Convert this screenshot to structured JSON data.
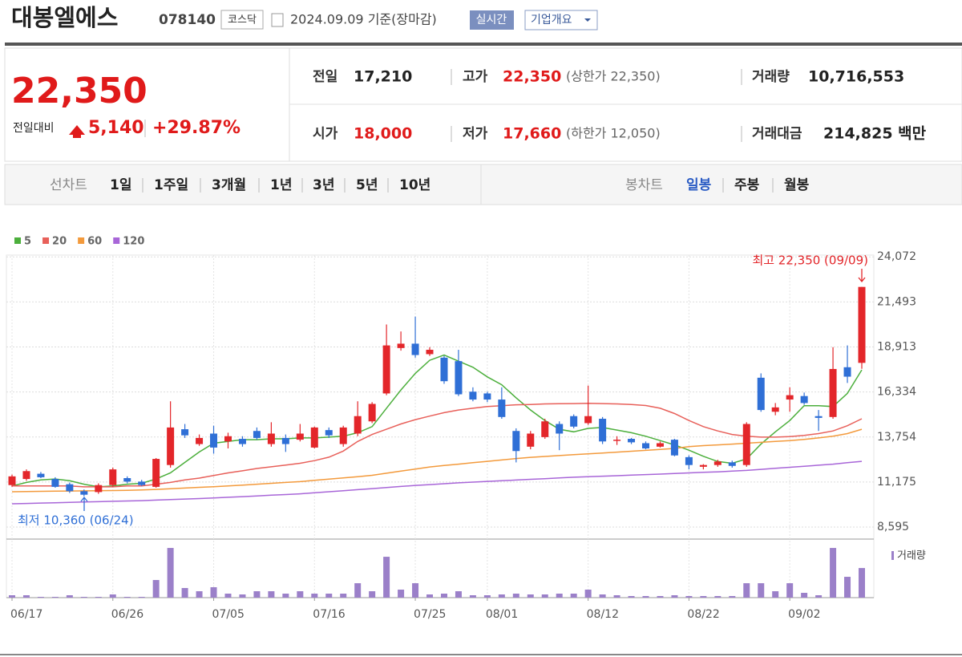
{
  "header": {
    "title": "대봉엘에스",
    "code": "078140",
    "market": "코스닥",
    "date": "2024.09.09 기준(장마감)",
    "buttons": [
      "실시간",
      "기업개요"
    ]
  },
  "quote": {
    "price": "22,350",
    "change_label": "전일대비",
    "change": "5,140",
    "rate": "+29.87%"
  },
  "stats": [
    {
      "label": "전일",
      "value": "17,210"
    },
    {
      "label": "고가",
      "value": "22,350",
      "note": "(상한가 22,350)"
    },
    {
      "label": "거래량",
      "value": "10,716,553"
    },
    {
      "label": "시가",
      "value": "18,000"
    },
    {
      "label": "저가",
      "value": "17,660",
      "note": "(하한가 12,050)"
    },
    {
      "label": "거래대금",
      "value": "214,825 백만"
    }
  ],
  "tabs": {
    "line": {
      "label": "선차트",
      "items": [
        "1일",
        "1주일",
        "3개월",
        "1년",
        "3년",
        "5년",
        "10년"
      ]
    },
    "candle": {
      "label": "봉차트",
      "items": [
        "일봉",
        "주봉",
        "월봉"
      ]
    }
  },
  "chart_data": {
    "type": "candlestick",
    "categories": [
      "06/17",
      null,
      null,
      null,
      null,
      null,
      null,
      "06/26",
      null,
      null,
      null,
      null,
      null,
      null,
      "07/05",
      null,
      null,
      null,
      null,
      null,
      null,
      "07/16",
      null,
      null,
      null,
      null,
      null,
      null,
      "07/25",
      null,
      null,
      null,
      null,
      "08/01",
      null,
      null,
      null,
      null,
      null,
      null,
      "08/12",
      null,
      null,
      null,
      null,
      null,
      null,
      "08/22",
      null,
      null,
      null,
      null,
      null,
      null,
      "09/02",
      null,
      null,
      null,
      null,
      null
    ],
    "open": [
      11000,
      11350,
      11650,
      11350,
      11050,
      10650,
      10600,
      11000,
      11400,
      11200,
      10900,
      12150,
      14200,
      13350,
      13950,
      13500,
      13650,
      14100,
      13350,
      13700,
      13600,
      13150,
      14150,
      13350,
      13950,
      14650,
      16250,
      18850,
      19100,
      18500,
      18300,
      18100,
      16350,
      16250,
      15900,
      14100,
      13200,
      13750,
      14500,
      14950,
      14550,
      14800,
      13550,
      13650,
      13400,
      13200,
      13600,
      12600,
      12050,
      12150,
      12300,
      12150,
      17150,
      15200,
      15900,
      16100,
      14950,
      14900,
      17750,
      18000
    ],
    "high": [
      11600,
      11900,
      11750,
      11450,
      11150,
      10750,
      11100,
      12000,
      11500,
      11300,
      12550,
      15800,
      14500,
      13900,
      14400,
      14000,
      13800,
      14300,
      14600,
      13900,
      14500,
      14350,
      14300,
      14400,
      15800,
      15750,
      20200,
      19800,
      20650,
      18900,
      18400,
      18750,
      16600,
      16350,
      16600,
      14250,
      14100,
      14800,
      14650,
      15050,
      16700,
      14900,
      13800,
      13700,
      13500,
      13500,
      13650,
      12700,
      12200,
      12450,
      12400,
      14600,
      17400,
      15700,
      16600,
      16300,
      15300,
      18900,
      19000,
      22350
    ],
    "low": [
      10900,
      11250,
      11400,
      10850,
      10550,
      10360,
      10500,
      10900,
      11100,
      10950,
      10850,
      12000,
      13700,
      13250,
      12800,
      13100,
      13200,
      13600,
      13200,
      12900,
      13500,
      13100,
      13700,
      13200,
      13800,
      14550,
      16150,
      18700,
      18300,
      18400,
      16800,
      16100,
      15800,
      15750,
      14800,
      12300,
      13050,
      13650,
      13000,
      14250,
      14450,
      13350,
      13300,
      13350,
      13050,
      13150,
      12650,
      11900,
      11900,
      12050,
      12000,
      12050,
      15200,
      15000,
      15200,
      15600,
      14100,
      14800,
      16850,
      17660
    ],
    "close": [
      11500,
      11800,
      11450,
      10900,
      10650,
      10450,
      11000,
      11900,
      11200,
      11000,
      12500,
      14300,
      13850,
      13700,
      13150,
      13800,
      13350,
      13700,
      13950,
      13350,
      13950,
      14300,
      13850,
      14300,
      14950,
      15650,
      19000,
      19100,
      18450,
      18750,
      16950,
      16200,
      15900,
      15900,
      14900,
      12950,
      13950,
      14650,
      13950,
      14350,
      14950,
      13500,
      13600,
      13450,
      13100,
      13400,
      12700,
      12150,
      12150,
      12350,
      12100,
      14500,
      15300,
      15450,
      16150,
      15700,
      14850,
      17650,
      17210,
      22350
    ],
    "up_color": "#e3262a",
    "down_color": "#2f6fd6",
    "ylim": [
      8000,
      25000
    ],
    "yticks": [
      {
        "value": 8595,
        "label": "8,595"
      },
      {
        "value": 11175,
        "label": "11,175"
      },
      {
        "value": 13754,
        "label": "13,754"
      },
      {
        "value": 16334,
        "label": "16,334"
      },
      {
        "value": 18913,
        "label": "18,913"
      },
      {
        "value": 21493,
        "label": "21,493"
      },
      {
        "value": 24072,
        "label": "24,072"
      }
    ],
    "grid": true,
    "series": [
      {
        "name": "5",
        "color": "#4caf3c",
        "values": [
          10950,
          11150,
          11300,
          11350,
          11250,
          11050,
          10900,
          10950,
          11050,
          11100,
          11350,
          11700,
          12300,
          12900,
          13400,
          13500,
          13600,
          13600,
          13650,
          13650,
          13700,
          13700,
          13750,
          13800,
          14000,
          14350,
          15400,
          16450,
          17400,
          18150,
          18450,
          18100,
          17750,
          17200,
          16750,
          16000,
          15300,
          14700,
          14200,
          14050,
          14250,
          14300,
          14150,
          14000,
          13800,
          13550,
          13300,
          13000,
          12650,
          12350,
          12250,
          12500,
          13350,
          14050,
          14700,
          15550,
          15550,
          15500,
          16250,
          17600
        ]
      },
      {
        "name": "20",
        "color": "#e8605a",
        "values": [
          10950,
          10950,
          10950,
          10950,
          10950,
          10900,
          10900,
          10900,
          10950,
          10950,
          11050,
          11150,
          11300,
          11400,
          11550,
          11700,
          11820,
          11950,
          12050,
          12150,
          12250,
          12400,
          12600,
          12950,
          13500,
          13900,
          14200,
          14500,
          14750,
          14950,
          15150,
          15300,
          15400,
          15500,
          15550,
          15600,
          15620,
          15650,
          15660,
          15670,
          15680,
          15670,
          15650,
          15620,
          15560,
          15400,
          15100,
          14700,
          14350,
          14100,
          13900,
          13800,
          13750,
          13750,
          13780,
          13850,
          13950,
          14100,
          14400,
          14800
        ]
      },
      {
        "name": "60",
        "color": "#f39a3c",
        "values": [
          10620,
          10630,
          10640,
          10650,
          10660,
          10670,
          10680,
          10690,
          10700,
          10720,
          10750,
          10790,
          10830,
          10870,
          10910,
          10950,
          11000,
          11050,
          11100,
          11150,
          11200,
          11270,
          11340,
          11410,
          11480,
          11560,
          11680,
          11800,
          11920,
          12040,
          12120,
          12200,
          12280,
          12360,
          12440,
          12520,
          12590,
          12640,
          12690,
          12740,
          12790,
          12840,
          12890,
          12940,
          12990,
          13040,
          13100,
          13200,
          13260,
          13300,
          13350,
          13400,
          13450,
          13500,
          13550,
          13620,
          13700,
          13800,
          13950,
          14200
        ]
      },
      {
        "name": "120",
        "color": "#a866d8",
        "values": [
          9930,
          9950,
          9970,
          9990,
          10010,
          10030,
          10050,
          10070,
          10090,
          10110,
          10140,
          10170,
          10200,
          10230,
          10260,
          10300,
          10340,
          10380,
          10420,
          10460,
          10500,
          10560,
          10620,
          10680,
          10740,
          10800,
          10860,
          10920,
          10980,
          11030,
          11080,
          11130,
          11170,
          11210,
          11250,
          11290,
          11330,
          11370,
          11410,
          11450,
          11480,
          11510,
          11540,
          11570,
          11600,
          11630,
          11660,
          11700,
          11730,
          11760,
          11800,
          11840,
          11900,
          11960,
          12020,
          12080,
          12140,
          12200,
          12280,
          12360
        ]
      }
    ],
    "volume": {
      "name": "거래량",
      "color": "#9b80c9",
      "ylim": [
        0,
        18000000
      ],
      "values": [
        870000,
        870000,
        290000,
        290000,
        870000,
        290000,
        290000,
        1160000,
        290000,
        290000,
        6380000,
        17980000,
        3480000,
        2320000,
        3770000,
        1450000,
        1160000,
        2320000,
        2320000,
        1450000,
        2320000,
        1450000,
        1450000,
        1450000,
        5220000,
        2320000,
        14790000,
        2900000,
        5220000,
        1160000,
        1450000,
        2320000,
        870000,
        870000,
        1160000,
        1450000,
        1160000,
        1160000,
        1450000,
        1450000,
        2900000,
        1160000,
        870000,
        580000,
        580000,
        580000,
        870000,
        580000,
        580000,
        580000,
        580000,
        5220000,
        5220000,
        2320000,
        5220000,
        1740000,
        870000,
        17980000,
        7540000,
        10716553
      ]
    },
    "annotations": [
      {
        "text": "최고 22,350 (09/09)",
        "color": "#e3262a"
      },
      {
        "text": "최저 10,360 (06/24)",
        "color": "#2f6fd6"
      }
    ]
  }
}
